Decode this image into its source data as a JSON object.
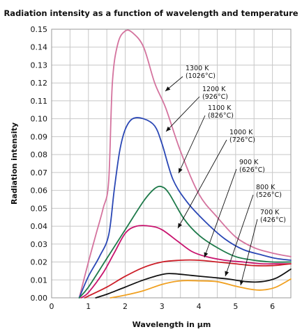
{
  "chart_data": {
    "type": "line",
    "title": "Radiation intensity as a function of wavelength and temperature",
    "xlabel": "Wavelength in µm",
    "ylabel": "Radiation intensity",
    "xlim": [
      0,
      6.5
    ],
    "ylim": [
      0,
      0.15
    ],
    "x_ticks": [
      "0",
      "1",
      "2",
      "3",
      "4",
      "5",
      "6"
    ],
    "y_ticks": [
      "0.00",
      "0.01",
      "0.02",
      "0.03",
      "0.04",
      "0.05",
      "0.06",
      "0.07",
      "0.08",
      "0.09",
      "0.10",
      "0.11",
      "0.12",
      "0.13",
      "0.14",
      "0.15"
    ],
    "grid": true,
    "series": [
      {
        "name": "1300 K (1026°C)",
        "color": "#d4739e",
        "x": [
          0.75,
          1.0,
          1.2,
          1.4,
          1.55,
          1.65,
          1.8,
          2.0,
          2.2,
          2.5,
          2.8,
          3.1,
          3.5,
          4.0,
          4.5,
          5.0,
          5.5,
          6.0,
          6.5
        ],
        "y": [
          0.0,
          0.02,
          0.035,
          0.05,
          0.065,
          0.12,
          0.142,
          0.149,
          0.148,
          0.14,
          0.12,
          0.106,
          0.082,
          0.058,
          0.045,
          0.034,
          0.028,
          0.025,
          0.023
        ]
      },
      {
        "name": "1200 K (926°C)",
        "color": "#2a47b5",
        "x": [
          0.75,
          1.0,
          1.3,
          1.55,
          1.7,
          1.85,
          2.0,
          2.2,
          2.5,
          2.8,
          3.0,
          3.3,
          3.7,
          4.2,
          4.7,
          5.2,
          5.7,
          6.1,
          6.5
        ],
        "y": [
          0.0,
          0.012,
          0.023,
          0.035,
          0.06,
          0.082,
          0.094,
          0.1,
          0.1,
          0.096,
          0.086,
          0.066,
          0.053,
          0.042,
          0.033,
          0.027,
          0.024,
          0.022,
          0.021
        ]
      },
      {
        "name": "1100 K (826°C)",
        "color": "#1e7a4a",
        "x": [
          0.75,
          1.0,
          1.5,
          2.0,
          2.5,
          2.8,
          3.0,
          3.2,
          3.6,
          4.0,
          4.5,
          5.0,
          5.5,
          6.0,
          6.5
        ],
        "y": [
          0.0,
          0.006,
          0.022,
          0.038,
          0.054,
          0.061,
          0.062,
          0.058,
          0.044,
          0.035,
          0.028,
          0.023,
          0.021,
          0.02,
          0.02
        ]
      },
      {
        "name": "1000 K (726°C)",
        "color": "#c8136e",
        "x": [
          0.8,
          1.0,
          1.4,
          1.7,
          2.0,
          2.3,
          2.7,
          3.0,
          3.4,
          3.8,
          4.2,
          4.7,
          5.2,
          5.7,
          6.2,
          6.5
        ],
        "y": [
          0.0,
          0.003,
          0.014,
          0.025,
          0.036,
          0.04,
          0.04,
          0.038,
          0.032,
          0.026,
          0.023,
          0.021,
          0.02,
          0.019,
          0.019,
          0.019
        ]
      },
      {
        "name": "900 K (626°C)",
        "color": "#cc1e28",
        "x": [
          0.9,
          1.0,
          1.5,
          2.0,
          2.5,
          3.0,
          3.5,
          4.0,
          4.5,
          5.0,
          5.5,
          6.0,
          6.5
        ],
        "y": [
          0.0,
          0.001,
          0.006,
          0.012,
          0.017,
          0.02,
          0.021,
          0.021,
          0.02,
          0.019,
          0.018,
          0.018,
          0.019
        ]
      },
      {
        "name": "800 K (526°C)",
        "color": "#111111",
        "x": [
          1.2,
          1.5,
          2.0,
          2.5,
          3.0,
          3.3,
          3.8,
          4.3,
          4.8,
          5.3,
          5.7,
          6.1,
          6.5
        ],
        "y": [
          0.0,
          0.002,
          0.006,
          0.01,
          0.013,
          0.0135,
          0.0125,
          0.0115,
          0.0105,
          0.009,
          0.009,
          0.011,
          0.016
        ]
      },
      {
        "name": "700 K (426°C)",
        "color": "#f0a020",
        "x": [
          1.6,
          2.0,
          2.5,
          3.0,
          3.5,
          4.0,
          4.5,
          5.0,
          5.5,
          5.8,
          6.1,
          6.5
        ],
        "y": [
          0.0,
          0.0015,
          0.004,
          0.0075,
          0.0095,
          0.0095,
          0.009,
          0.0065,
          0.0045,
          0.0045,
          0.006,
          0.0105
        ]
      }
    ],
    "annotations": [
      {
        "line1": "1300 K",
        "line2": "(1026°C)"
      },
      {
        "line1": "1200 K",
        "line2": "(926°C)"
      },
      {
        "line1": "1100 K",
        "line2": "(826°C)"
      },
      {
        "line1": "1000 K",
        "line2": "(726°C)"
      },
      {
        "line1": "900 K",
        "line2": "(626°C)"
      },
      {
        "line1": "800 K",
        "line2": "(526°C)"
      },
      {
        "line1": "700 K",
        "line2": "(426°C)"
      }
    ]
  }
}
